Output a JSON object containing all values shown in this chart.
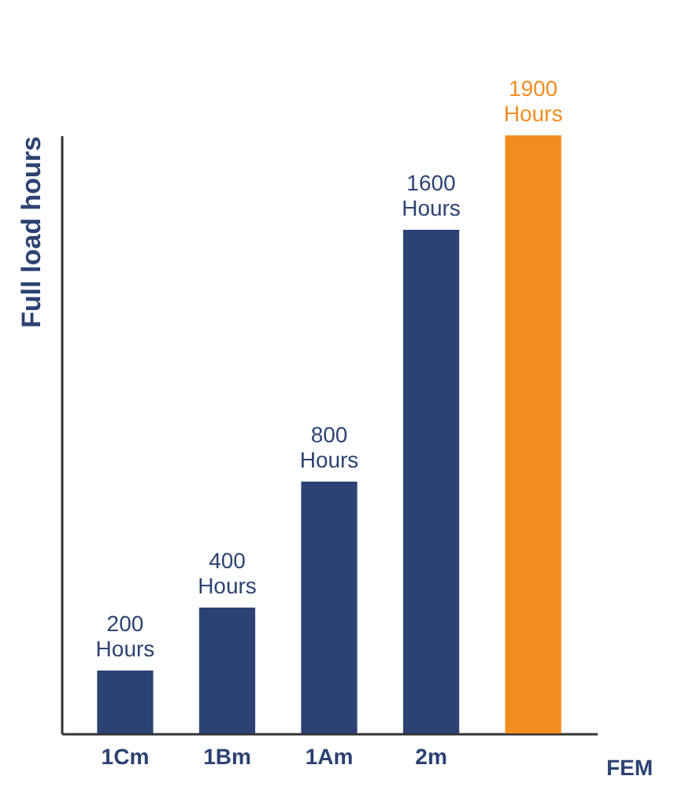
{
  "chart_data": {
    "type": "bar",
    "categories": [
      "1Cm",
      "1Bm",
      "1Am",
      "2m",
      null
    ],
    "values": [
      200,
      400,
      800,
      1600,
      1900
    ],
    "colors": [
      "#2b4272",
      "#2b4272",
      "#2b4272",
      "#2b4272",
      "#f28c1e"
    ],
    "value_labels": [
      "200 Hours",
      "400 Hours",
      "800 Hours",
      "1600 Hours",
      "1900 Hours"
    ],
    "xlabel": "FEM",
    "ylabel": "Full load hours",
    "grid": false,
    "legend": false
  }
}
